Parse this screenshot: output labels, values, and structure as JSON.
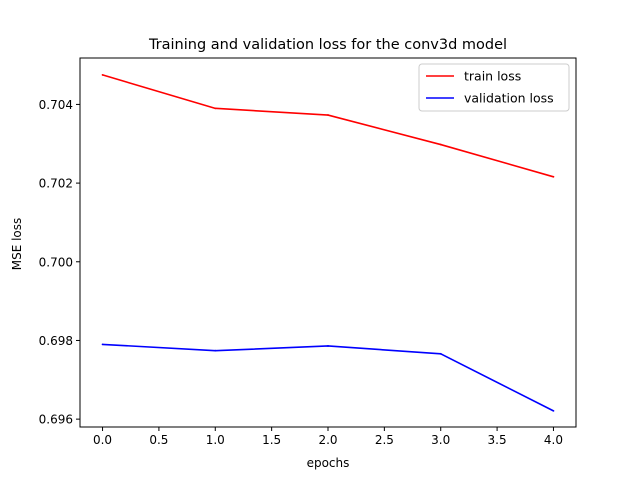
{
  "chart_data": {
    "type": "line",
    "title": "Training and validation loss for the conv3d model",
    "xlabel": "epochs",
    "ylabel": "MSE loss",
    "x": [
      0,
      1,
      2,
      3,
      4
    ],
    "xlim": [
      -0.2,
      4.2
    ],
    "ylim": [
      0.6958,
      0.70518
    ],
    "xticks": [
      0.0,
      0.5,
      1.0,
      1.5,
      2.0,
      2.5,
      3.0,
      3.5,
      4.0
    ],
    "xtick_labels": [
      "0.0",
      "0.5",
      "1.0",
      "1.5",
      "2.0",
      "2.5",
      "3.0",
      "3.5",
      "4.0"
    ],
    "yticks": [
      0.696,
      0.698,
      0.7,
      0.702,
      0.704
    ],
    "ytick_labels": [
      "0.696",
      "0.698",
      "0.700",
      "0.702",
      "0.704"
    ],
    "grid": false,
    "legend_position": "top-right",
    "series": [
      {
        "name": "train loss",
        "color": "#ff0000",
        "values": [
          0.70475,
          0.7039,
          0.70373,
          0.70298,
          0.70216
        ]
      },
      {
        "name": "validation loss",
        "color": "#0000ff",
        "values": [
          0.6979,
          0.69774,
          0.69786,
          0.69766,
          0.69621
        ]
      }
    ]
  }
}
